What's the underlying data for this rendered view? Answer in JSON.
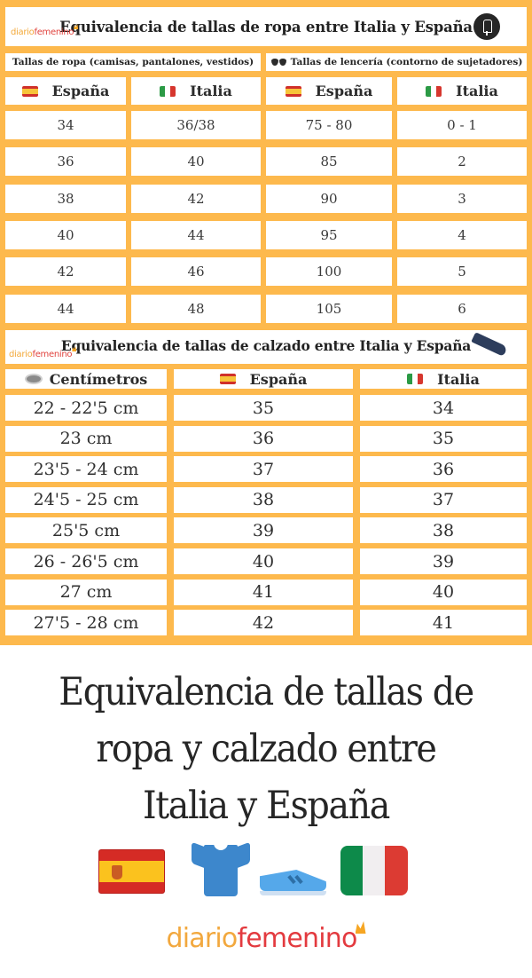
{
  "brand": {
    "logo_part1": "diario",
    "logo_part2": "femenino",
    "colors": {
      "orange": "#f2a83e",
      "red": "#e33a3f",
      "table_bg": "#fdb94d"
    }
  },
  "clothing_section": {
    "title": "Equivalencia de tallas de ropa entre Italia y España",
    "icon": "dress-form-icon",
    "subheader_clothes": "Tallas de ropa (camisas, pantalones, vestidos)",
    "subheader_lingerie": "Tallas de lencería (contorno de sujetadores)",
    "columns": [
      "España",
      "Italia",
      "España",
      "Italia"
    ],
    "rows": [
      [
        "34",
        "36/38",
        "75 - 80",
        "0 - 1"
      ],
      [
        "36",
        "40",
        "85",
        "2"
      ],
      [
        "38",
        "42",
        "90",
        "3"
      ],
      [
        "40",
        "44",
        "95",
        "4"
      ],
      [
        "42",
        "46",
        "100",
        "5"
      ],
      [
        "44",
        "48",
        "105",
        "6"
      ]
    ]
  },
  "shoe_section": {
    "title": "Equivalencia de tallas de calzado entre Italia y España",
    "icon": "flat-shoe-icon",
    "columns": [
      "Centímetros",
      "España",
      "Italia"
    ],
    "rows": [
      [
        "22 - 22'5 cm",
        "35",
        "34"
      ],
      [
        "23 cm",
        "36",
        "35"
      ],
      [
        "23'5 - 24 cm",
        "37",
        "36"
      ],
      [
        "24'5 - 25 cm",
        "38",
        "37"
      ],
      [
        "25'5 cm",
        "39",
        "38"
      ],
      [
        "26 - 26'5 cm",
        "40",
        "39"
      ],
      [
        "27 cm",
        "41",
        "40"
      ],
      [
        "27'5 - 28 cm",
        "42",
        "41"
      ]
    ]
  },
  "caption": {
    "line1": "Equivalencia de tallas de",
    "line2": "ropa y calzado entre",
    "line3": "Italia y España"
  },
  "icons": [
    "spain-flag-icon",
    "tshirt-icon",
    "sneaker-icon",
    "italy-flag-icon"
  ]
}
